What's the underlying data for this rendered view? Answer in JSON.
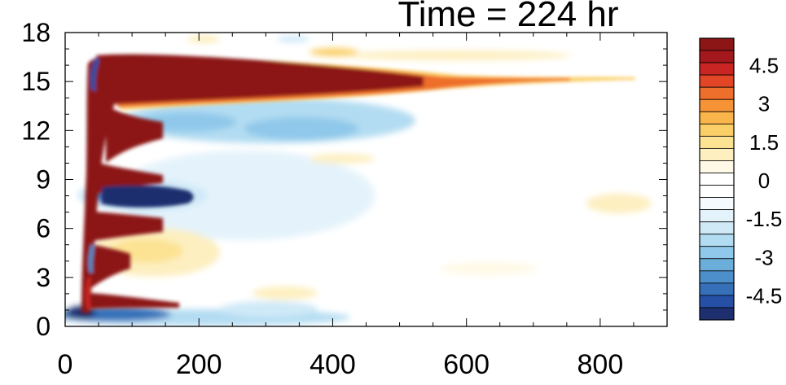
{
  "chart_data": {
    "type": "heatmap",
    "title": "Time = 224 hr",
    "xlim": [
      0,
      900
    ],
    "ylim": [
      0,
      18
    ],
    "x_ticks": [
      0,
      200,
      400,
      600,
      800
    ],
    "x_tick_labels": [
      "0",
      "200",
      "400",
      "600",
      "800"
    ],
    "y_ticks": [
      0,
      3,
      6,
      9,
      12,
      15,
      18
    ],
    "y_tick_labels": [
      "0",
      "3",
      "6",
      "9",
      "12",
      "15",
      "18"
    ],
    "xlabel": "",
    "ylabel": "",
    "colorbar": {
      "levels": [
        -5.5,
        -5.0,
        -4.5,
        -4.0,
        -3.5,
        -3.0,
        -2.5,
        -2.0,
        -1.5,
        -1.0,
        -0.5,
        0.0,
        0.5,
        1.0,
        1.5,
        2.0,
        2.5,
        3.0,
        3.5,
        4.0,
        4.5,
        5.0,
        5.5
      ],
      "colors": [
        "#1d2f6e",
        "#2650a6",
        "#3570b8",
        "#4d8fcb",
        "#6aaed9",
        "#8fc8ea",
        "#b2dcf2",
        "#cfe9f7",
        "#e4f3fb",
        "#f4fafd",
        "#ffffff",
        "#ffffff",
        "#fff9e6",
        "#fdefc0",
        "#fce293",
        "#fbcf68",
        "#f9b44a",
        "#f59336",
        "#ee6e2b",
        "#e24626",
        "#c92522",
        "#a3181d",
        "#8c1515"
      ],
      "tick_values": [
        4.5,
        3,
        1.5,
        0,
        -1.5,
        -3,
        -4.5
      ],
      "tick_labels": [
        "4.5",
        "3",
        "1.5",
        "0",
        "-1.5",
        "-3",
        "-4.5"
      ]
    },
    "features": [
      {
        "x0": 50,
        "x1": 900,
        "y0": 13.0,
        "y1": 16.8,
        "peak": 6.0,
        "note": "strong positive band near y=15, decaying eastward"
      },
      {
        "x0": 60,
        "x1": 500,
        "y0": 11.0,
        "y1": 13.0,
        "peak": -2.5
      },
      {
        "x0": 80,
        "x1": 180,
        "y0": 7.0,
        "y1": 8.5,
        "peak": -5.5
      },
      {
        "x0": 40,
        "x1": 80,
        "y0": 1.0,
        "y1": 16.0,
        "peak": 6.0
      },
      {
        "x0": 50,
        "x1": 350,
        "y0": 0.0,
        "y1": 1.0,
        "peak": -4.0
      },
      {
        "x0": 100,
        "x1": 300,
        "y0": 3.0,
        "y1": 6.0,
        "peak": 1.5
      }
    ]
  }
}
